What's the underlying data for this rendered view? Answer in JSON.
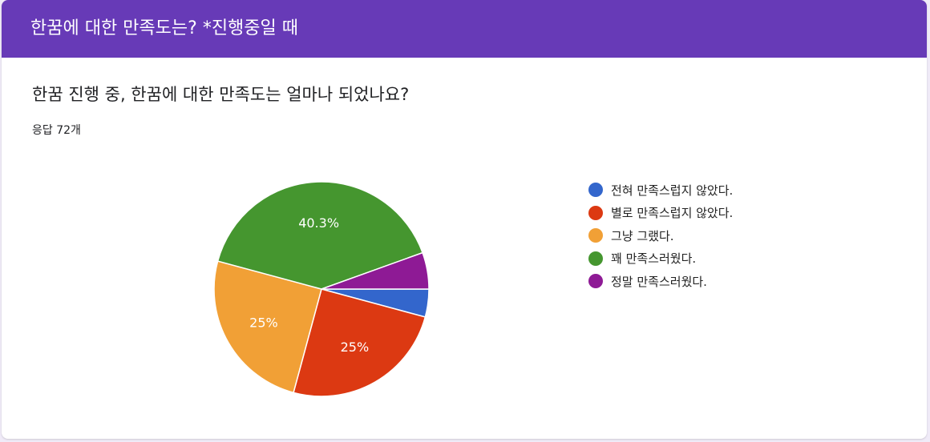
{
  "header": {
    "title": "한꿈에 대한 만족도는? *진행중일 때"
  },
  "question": {
    "title": "한꿈 진행 중, 한꿈에 대한 만족도는 얼마나 되었나요?",
    "response_count": "응답 72개"
  },
  "colors": {
    "header_bg": "#673ab7"
  },
  "chart_data": {
    "type": "pie",
    "slices": [
      {
        "label": "전혀 만족스럽지 않았다.",
        "value": 4.2,
        "display": "",
        "color": "#3366cc"
      },
      {
        "label": "별로 만족스럽지 않았다.",
        "value": 25,
        "display": "25%",
        "color": "#dc3912"
      },
      {
        "label": "그냥 그랬다.",
        "value": 25,
        "display": "25%",
        "color": "#f1a036"
      },
      {
        "label": "꽤 만족스러웠다.",
        "value": 40.3,
        "display": "40.3%",
        "color": "#45962f"
      },
      {
        "label": "정말 만족스러웠다.",
        "value": 5.5,
        "display": "",
        "color": "#8e1a95"
      }
    ],
    "legend_position": "right"
  }
}
